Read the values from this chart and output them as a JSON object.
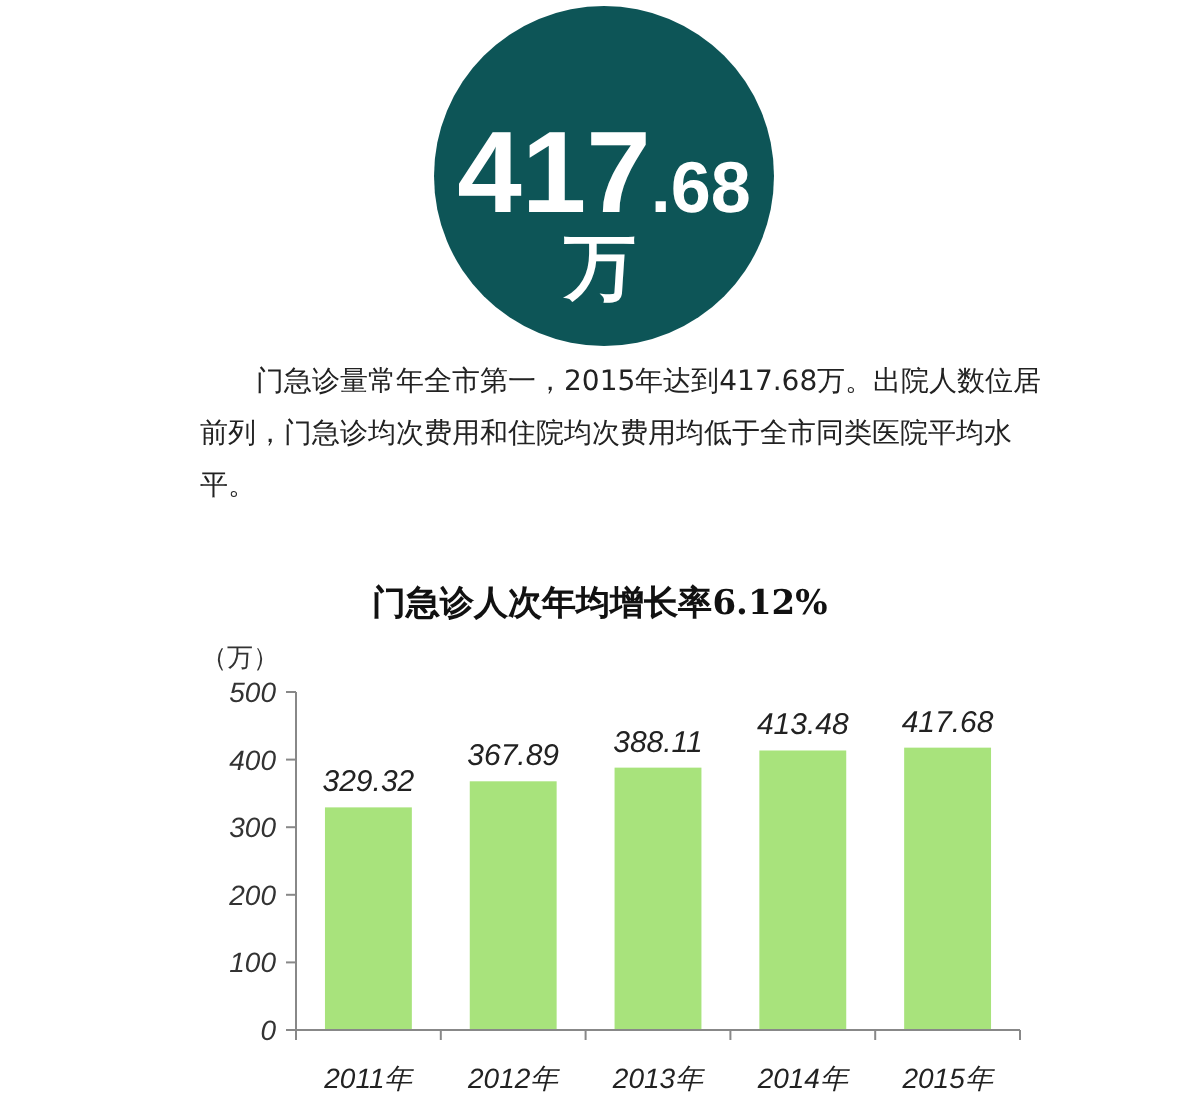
{
  "chart_data": {
    "type": "bar",
    "title": "门急诊人次年均增长率6.12%",
    "ylabel": "（万）",
    "categories": [
      "2011年",
      "2012年",
      "2013年",
      "2014年",
      "2015年"
    ],
    "values": [
      329.32,
      367.89,
      388.11,
      413.48,
      417.68
    ],
    "color": "#a8e37c",
    "data_labels": true,
    "ylim": [
      0,
      500
    ],
    "yticks": [
      0,
      100,
      200,
      300,
      400,
      500
    ],
    "annotations": [
      "417.68万",
      "门急诊量常年全市第一，2015年达到417.68万。出院人数位居前列，门急诊均次费用和住院均次费用均低于全市同类医院平均水平。"
    ]
  }
}
